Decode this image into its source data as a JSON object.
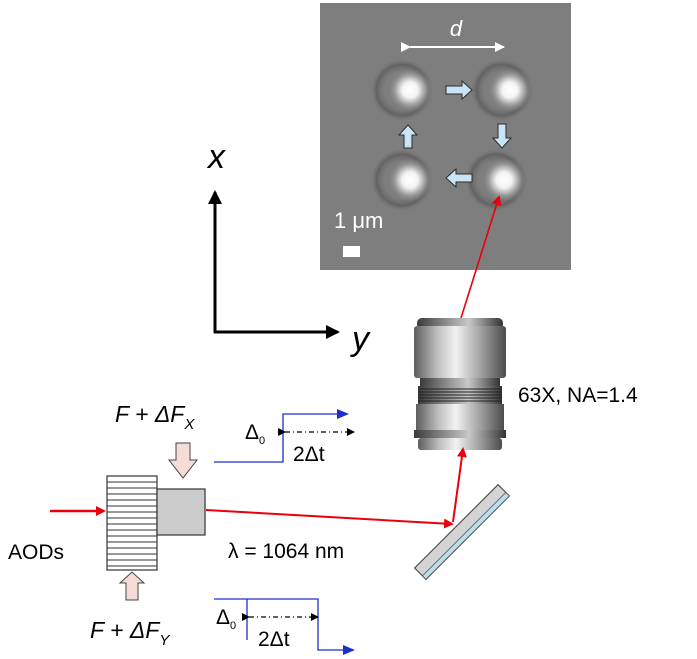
{
  "micrograph": {
    "spacing_label": "d",
    "scale_bar_label": "1 μm"
  },
  "axes": {
    "x_label": "x",
    "y_label": "y"
  },
  "objective": {
    "label": "63X, NA=1.4"
  },
  "aods": {
    "label": "AODs",
    "drive_x": "F + ΔF",
    "drive_x_sub": "X",
    "drive_y": "F + ΔF",
    "drive_y_sub": "Y"
  },
  "beam": {
    "wavelength_label": "λ = 1064 nm"
  },
  "timing_x": {
    "offset_label": "Δ",
    "offset_sub": "0",
    "interval_label": "2Δt"
  },
  "timing_y": {
    "offset_label": "Δ",
    "offset_sub": "0",
    "interval_label": "2Δt"
  },
  "colors": {
    "laser": "#e8000b",
    "signal": "#1f2ecf",
    "arrow_fill": "#f6dcd6",
    "micrograph_bg": "#7e7e7e",
    "motion_arrow": "#c9e3f7"
  }
}
